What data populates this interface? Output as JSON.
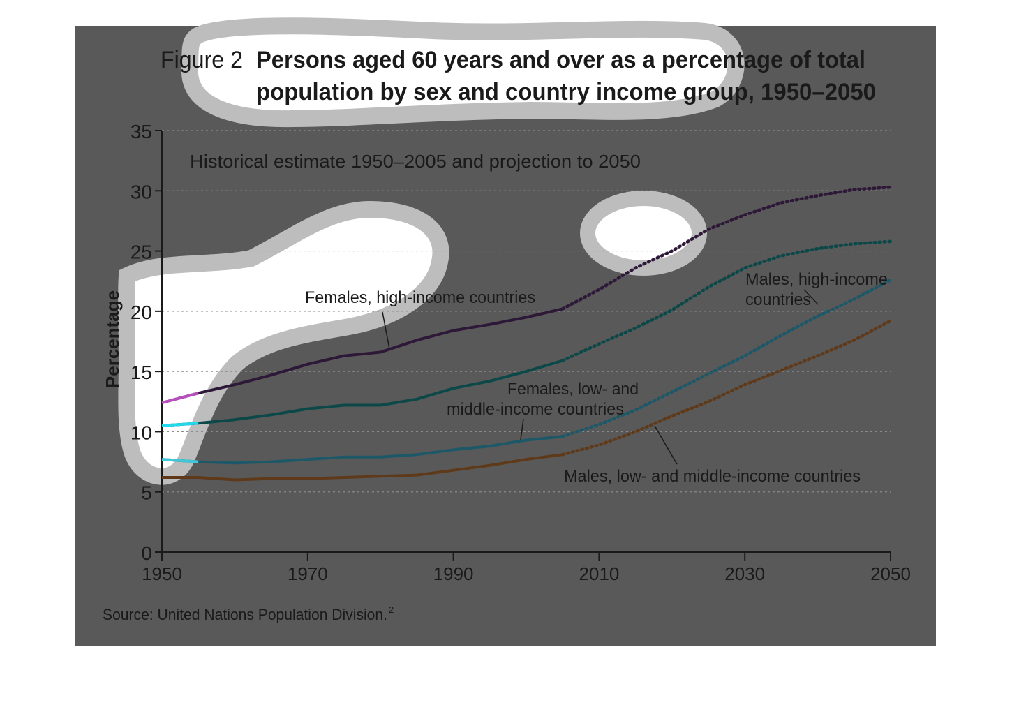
{
  "figure": {
    "label": "Figure 2",
    "title_line1": "Persons aged 60 years and over as a percentage of total",
    "title_line2": "population by sex and country income group, 1950–2050",
    "subtitle": "Historical estimate 1950–2005 and projection to 2050",
    "source": "Source: United Nations Population Division.",
    "source_ref": "2"
  },
  "colors": {
    "background": "#595959",
    "grid": "#8a8a8a",
    "axis": "#1a1a1a",
    "females_high": "#2e1838",
    "males_high": "#0c4848",
    "females_low_mid": "#1d5868",
    "males_low_mid": "#5e3a1a",
    "highlight_females_high": "#b84ec0",
    "highlight_males_high": "#22d8ea",
    "highlight_females_low_mid": "#40c8d8",
    "blob_fill": "#ffffff",
    "blob_ring": "#bdbdbd"
  },
  "chart_data": {
    "type": "line",
    "xlim": [
      1950,
      2050
    ],
    "ylim": [
      0,
      35
    ],
    "ylabel": "Percentage",
    "xlabel": "",
    "x_ticks": [
      "1950",
      "1970",
      "1990",
      "2010",
      "2030",
      "2050"
    ],
    "y_ticks": [
      "0",
      "5",
      "10",
      "15",
      "20",
      "25",
      "30",
      "35"
    ],
    "grid": "horizontal dashed",
    "historical_end": 2005,
    "series": [
      {
        "name": "Females, high-income countries",
        "key": "females_high",
        "x": [
          1950,
          1955,
          1960,
          1965,
          1970,
          1975,
          1980,
          1985,
          1990,
          1995,
          2000,
          2005,
          2010,
          2015,
          2020,
          2025,
          2030,
          2035,
          2040,
          2045,
          2050
        ],
        "y": [
          12.4,
          13.2,
          13.9,
          14.7,
          15.6,
          16.3,
          16.6,
          17.6,
          18.4,
          18.9,
          19.5,
          20.2,
          21.8,
          23.6,
          25.0,
          26.8,
          28.0,
          29.0,
          29.6,
          30.1,
          30.3
        ]
      },
      {
        "name": "Males, high-income countries",
        "key": "males_high",
        "x": [
          1950,
          1955,
          1960,
          1965,
          1970,
          1975,
          1980,
          1985,
          1990,
          1995,
          2000,
          2005,
          2010,
          2015,
          2020,
          2025,
          2030,
          2035,
          2040,
          2045,
          2050
        ],
        "y": [
          10.5,
          10.7,
          11.0,
          11.4,
          11.9,
          12.2,
          12.2,
          12.7,
          13.6,
          14.2,
          15.0,
          15.9,
          17.3,
          18.6,
          20.1,
          22.0,
          23.6,
          24.6,
          25.2,
          25.6,
          25.8
        ]
      },
      {
        "name": "Females, low- and middle-income countries",
        "key": "females_low_mid",
        "x": [
          1950,
          1955,
          1960,
          1965,
          1970,
          1975,
          1980,
          1985,
          1990,
          1995,
          2000,
          2005,
          2010,
          2015,
          2020,
          2025,
          2030,
          2035,
          2040,
          2045,
          2050
        ],
        "y": [
          7.7,
          7.5,
          7.4,
          7.5,
          7.7,
          7.9,
          7.9,
          8.1,
          8.5,
          8.8,
          9.3,
          9.6,
          10.6,
          11.8,
          13.3,
          14.8,
          16.3,
          18.0,
          19.6,
          21.0,
          22.6
        ]
      },
      {
        "name": "Males, low- and middle-income countries",
        "key": "males_low_mid",
        "x": [
          1950,
          1955,
          1960,
          1965,
          1970,
          1975,
          1980,
          1985,
          1990,
          1995,
          2000,
          2005,
          2010,
          2015,
          2020,
          2025,
          2030,
          2035,
          2040,
          2045,
          2050
        ],
        "y": [
          6.2,
          6.2,
          6.0,
          6.1,
          6.1,
          6.2,
          6.3,
          6.4,
          6.8,
          7.2,
          7.7,
          8.1,
          8.9,
          10.0,
          11.3,
          12.5,
          13.9,
          15.1,
          16.3,
          17.6,
          19.2
        ]
      }
    ],
    "annotations": [
      {
        "key": "females_high",
        "lines": [
          "Females, high-income countries"
        ]
      },
      {
        "key": "males_high",
        "lines": [
          "Males, high-income",
          "countries"
        ]
      },
      {
        "key": "females_low_mid",
        "lines": [
          "Females, low- and",
          "middle-income countries"
        ]
      },
      {
        "key": "males_low_mid",
        "lines": [
          "Males, low- and middle-income countries"
        ]
      }
    ]
  }
}
